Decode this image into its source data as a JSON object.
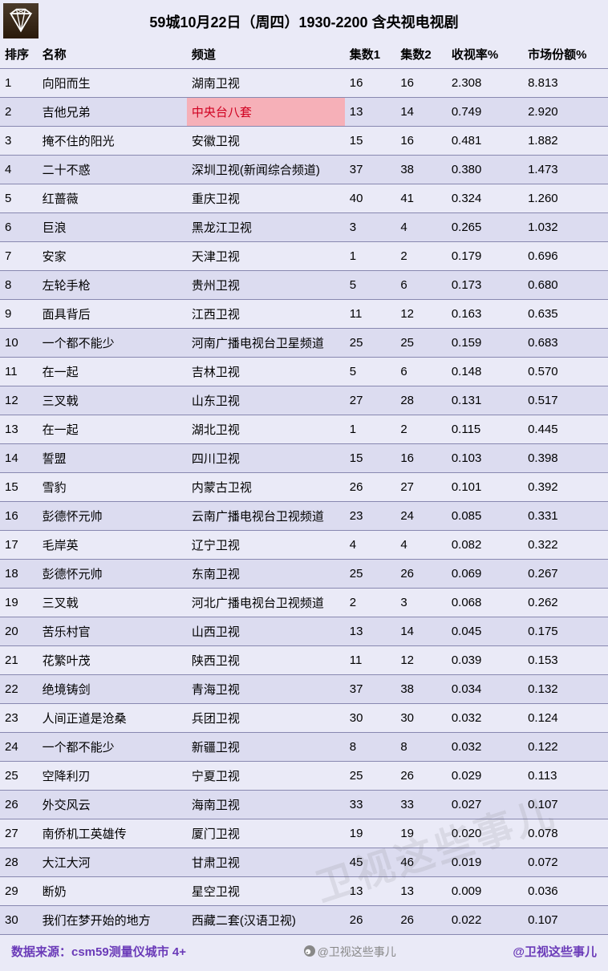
{
  "title": "59城10月22日（周四）1930-2200 含央视电视剧",
  "columns": [
    "排序",
    "名称",
    "频道",
    "集数1",
    "集数2",
    "收视率%",
    "市场份额%"
  ],
  "highlight": {
    "row": 1,
    "col": 2,
    "color": "#f6b0b8",
    "text_color": "#d00020"
  },
  "rows": [
    [
      "1",
      "向阳而生",
      "湖南卫视",
      "16",
      "16",
      "2.308",
      "8.813"
    ],
    [
      "2",
      "吉他兄弟",
      "中央台八套",
      "13",
      "14",
      "0.749",
      "2.920"
    ],
    [
      "3",
      "掩不住的阳光",
      "安徽卫视",
      "15",
      "16",
      "0.481",
      "1.882"
    ],
    [
      "4",
      "二十不惑",
      "深圳卫视(新闻综合频道)",
      "37",
      "38",
      "0.380",
      "1.473"
    ],
    [
      "5",
      "红蔷薇",
      "重庆卫视",
      "40",
      "41",
      "0.324",
      "1.260"
    ],
    [
      "6",
      "巨浪",
      "黑龙江卫视",
      "3",
      "4",
      "0.265",
      "1.032"
    ],
    [
      "7",
      "安家",
      "天津卫视",
      "1",
      "2",
      "0.179",
      "0.696"
    ],
    [
      "8",
      "左轮手枪",
      "贵州卫视",
      "5",
      "6",
      "0.173",
      "0.680"
    ],
    [
      "9",
      "面具背后",
      "江西卫视",
      "11",
      "12",
      "0.163",
      "0.635"
    ],
    [
      "10",
      "一个都不能少",
      "河南广播电视台卫星频道",
      "25",
      "25",
      "0.159",
      "0.683"
    ],
    [
      "11",
      "在一起",
      "吉林卫视",
      "5",
      "6",
      "0.148",
      "0.570"
    ],
    [
      "12",
      "三叉戟",
      "山东卫视",
      "27",
      "28",
      "0.131",
      "0.517"
    ],
    [
      "13",
      "在一起",
      "湖北卫视",
      "1",
      "2",
      "0.115",
      "0.445"
    ],
    [
      "14",
      "誓盟",
      "四川卫视",
      "15",
      "16",
      "0.103",
      "0.398"
    ],
    [
      "15",
      "雪豹",
      "内蒙古卫视",
      "26",
      "27",
      "0.101",
      "0.392"
    ],
    [
      "16",
      "彭德怀元帅",
      "云南广播电视台卫视频道",
      "23",
      "24",
      "0.085",
      "0.331"
    ],
    [
      "17",
      "毛岸英",
      "辽宁卫视",
      "4",
      "4",
      "0.082",
      "0.322"
    ],
    [
      "18",
      "彭德怀元帅",
      "东南卫视",
      "25",
      "26",
      "0.069",
      "0.267"
    ],
    [
      "19",
      "三叉戟",
      "河北广播电视台卫视频道",
      "2",
      "3",
      "0.068",
      "0.262"
    ],
    [
      "20",
      "苦乐村官",
      "山西卫视",
      "13",
      "14",
      "0.045",
      "0.175"
    ],
    [
      "21",
      "花繁叶茂",
      "陕西卫视",
      "11",
      "12",
      "0.039",
      "0.153"
    ],
    [
      "22",
      "绝境铸剑",
      "青海卫视",
      "37",
      "38",
      "0.034",
      "0.132"
    ],
    [
      "23",
      "人间正道是沧桑",
      "兵团卫视",
      "30",
      "30",
      "0.032",
      "0.124"
    ],
    [
      "24",
      "一个都不能少",
      "新疆卫视",
      "8",
      "8",
      "0.032",
      "0.122"
    ],
    [
      "25",
      "空降利刃",
      "宁夏卫视",
      "25",
      "26",
      "0.029",
      "0.113"
    ],
    [
      "26",
      "外交风云",
      "海南卫视",
      "33",
      "33",
      "0.027",
      "0.107"
    ],
    [
      "27",
      "南侨机工英雄传",
      "厦门卫视",
      "19",
      "19",
      "0.020",
      "0.078"
    ],
    [
      "28",
      "大江大河",
      "甘肃卫视",
      "45",
      "46",
      "0.019",
      "0.072"
    ],
    [
      "29",
      "断奶",
      "星空卫视",
      "13",
      "13",
      "0.009",
      "0.036"
    ],
    [
      "30",
      "我们在梦开始的地方",
      "西藏二套(汉语卫视)",
      "26",
      "26",
      "0.022",
      "0.107"
    ]
  ],
  "footer": {
    "source_label": "数据来源：csm59测量仪城市 4+",
    "middle": "@卫视这些事儿",
    "right": "@卫视这些事儿"
  },
  "watermark": "卫视这些事儿",
  "colors": {
    "bg": "#eaeaf7",
    "row_alt": "#dcdcf0",
    "border": "#8888b0",
    "accent": "#6a3ab8"
  }
}
